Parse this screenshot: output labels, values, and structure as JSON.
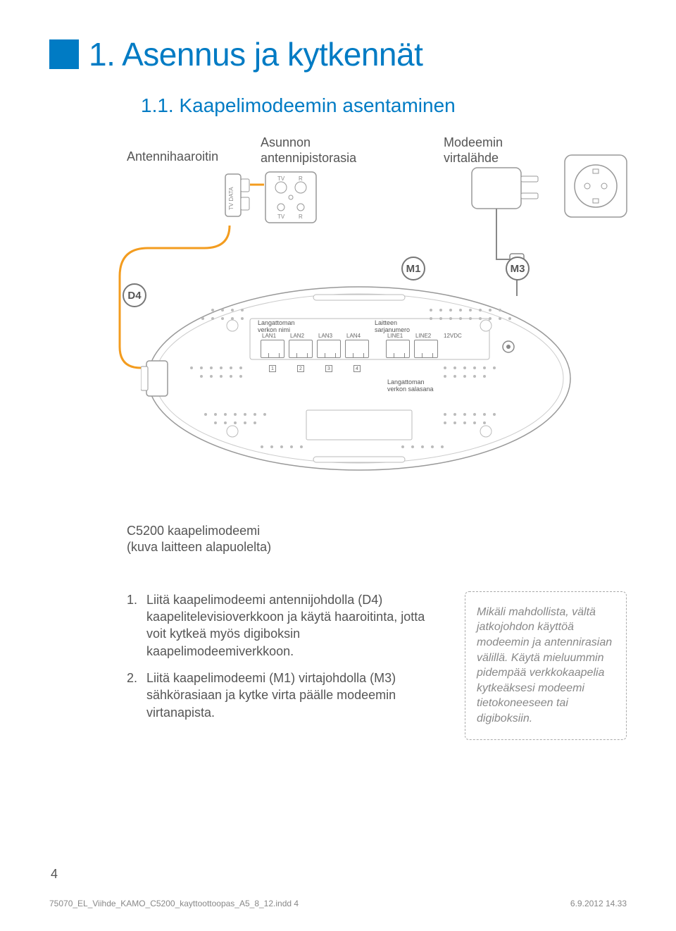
{
  "colors": {
    "accent": "#007bc4",
    "orange_wire": "#f39c1f",
    "text": "#555555",
    "tip_text": "#888888",
    "outline": "#999999"
  },
  "heading": {
    "number_title": "1. Asennus ja kytkennät",
    "subtitle": "1.1. Kaapelimodeemin asentaminen"
  },
  "labels": {
    "splitter": "Antennihaaroitin",
    "wall_socket": "Asunnon\nantennipistorasia",
    "power_supply": "Modeemin\nvirtalähde",
    "wifi_name": "Langattoman\nverkon nimi",
    "serial": "Laitteen\nsarjanumero",
    "wifi_pass": "Langattoman\nverkon salasana"
  },
  "markers": {
    "d4": "D4",
    "m1": "M1",
    "m3": "M3"
  },
  "modem_ports": {
    "lan": [
      "LAN1",
      "LAN2",
      "LAN3",
      "LAN4"
    ],
    "line": [
      "LINE1",
      "LINE2"
    ],
    "power": "12VDC",
    "nums": [
      "1",
      "2",
      "3",
      "4"
    ]
  },
  "socket_labels": {
    "tv": "TV",
    "r": "R",
    "tvdata": "TV DATA"
  },
  "caption": "C5200 kaapelimodeemi\n(kuva laitteen alapuolelta)",
  "steps": [
    {
      "num": "1.",
      "text": "Liitä kaapelimodeemi antennijohdolla (D4) kaapelitelevisioverkkoon ja käytä haaroitinta, jotta voit kytkeä myös digiboksin kaapelimodeemiverkkoon."
    },
    {
      "num": "2.",
      "text": "Liitä kaapelimodeemi (M1) virtajohdolla (M3) sähkörasiaan ja kytke virta päälle modeemin virtanapista."
    }
  ],
  "tip": "Mikäli mahdollista, vältä jatkojohdon käyttöä modeemin ja antennirasian välillä. Käytä mieluummin pidempää verkkokaapelia kytkeäksesi modeemi tietokoneeseen tai digiboksiin.",
  "footer": {
    "page": "4",
    "file": "75070_EL_Viihde_KAMO_C5200_kayttoottoopas_A5_8_12.indd   4",
    "timestamp": "6.9.2012   14.33"
  }
}
